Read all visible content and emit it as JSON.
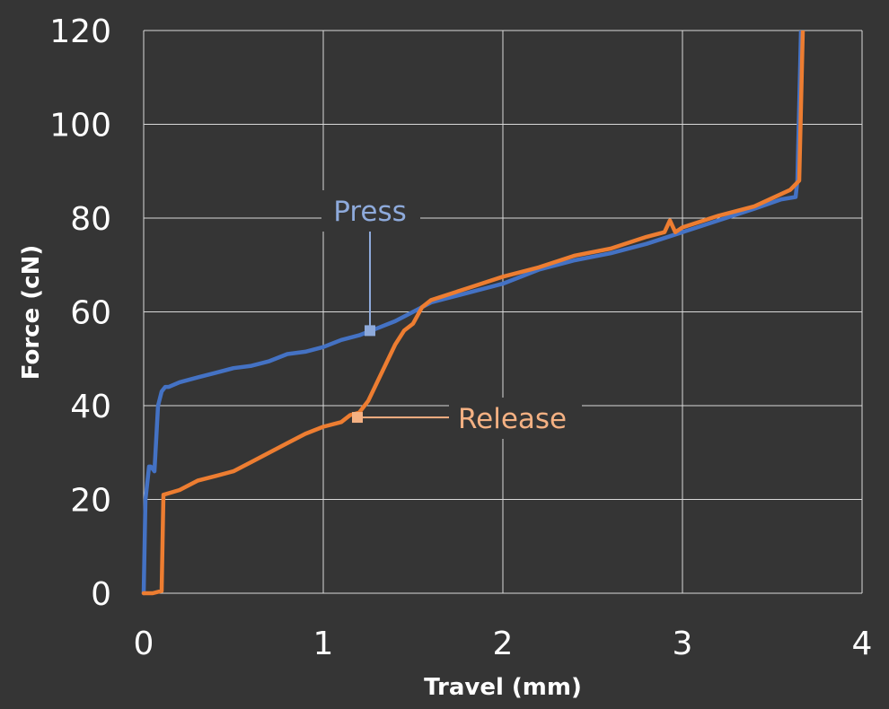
{
  "chart_data": {
    "type": "line",
    "title": "",
    "xlabel": "Travel (mm)",
    "ylabel": "Force (cN)",
    "xlim": [
      0,
      4
    ],
    "ylim": [
      0,
      120
    ],
    "x_ticks": [
      "0",
      "1",
      "2",
      "3",
      "4"
    ],
    "y_ticks": [
      "0",
      "20",
      "40",
      "60",
      "80",
      "100",
      "120"
    ],
    "grid": true,
    "legend": "none",
    "background": "#353535",
    "series": [
      {
        "name": "Press",
        "color": "#4472c4",
        "x": [
          0,
          0.01,
          0.03,
          0.04,
          0.06,
          0.07,
          0.08,
          0.1,
          0.12,
          0.14,
          0.2,
          0.3,
          0.4,
          0.5,
          0.6,
          0.7,
          0.8,
          0.9,
          1.0,
          1.1,
          1.2,
          1.3,
          1.4,
          1.5,
          1.55,
          1.6,
          1.8,
          2.0,
          2.2,
          2.4,
          2.6,
          2.8,
          3.0,
          3.2,
          3.4,
          3.55,
          3.63,
          3.64,
          3.66
        ],
        "y": [
          0,
          20,
          27,
          27,
          26,
          33,
          40,
          43,
          44,
          44,
          45,
          46,
          47,
          48,
          48.5,
          49.5,
          51,
          51.5,
          52.5,
          54,
          55,
          56.5,
          58,
          60,
          61,
          62,
          64,
          66,
          69,
          71,
          72.5,
          74.5,
          77,
          79.5,
          82,
          84,
          84.5,
          88,
          120
        ]
      },
      {
        "name": "Release",
        "color": "#ed7d31",
        "x": [
          0,
          0.05,
          0.1,
          0.11,
          0.2,
          0.3,
          0.4,
          0.5,
          0.6,
          0.7,
          0.8,
          0.9,
          1.0,
          1.1,
          1.15,
          1.2,
          1.25,
          1.3,
          1.35,
          1.4,
          1.45,
          1.5,
          1.55,
          1.6,
          1.8,
          2.0,
          2.2,
          2.4,
          2.6,
          2.8,
          2.9,
          2.93,
          2.96,
          3.0,
          3.2,
          3.4,
          3.6,
          3.65,
          3.67
        ],
        "y": [
          0,
          0,
          0.5,
          21,
          22,
          24,
          25,
          26,
          28,
          30,
          32,
          34,
          35.5,
          36.5,
          38,
          38.5,
          41,
          45,
          49,
          53,
          56,
          57.5,
          61,
          62.5,
          65,
          67.5,
          69.5,
          72,
          73.5,
          76,
          77,
          79.5,
          77,
          78,
          80.5,
          82.5,
          86,
          88,
          120
        ]
      }
    ],
    "annotations": [
      {
        "text": "Press",
        "color": "#8eaadb",
        "x": 1.26,
        "y": 56
      },
      {
        "text": "Release",
        "color": "#f4b183",
        "x": 1.19,
        "y": 37.5
      }
    ]
  }
}
